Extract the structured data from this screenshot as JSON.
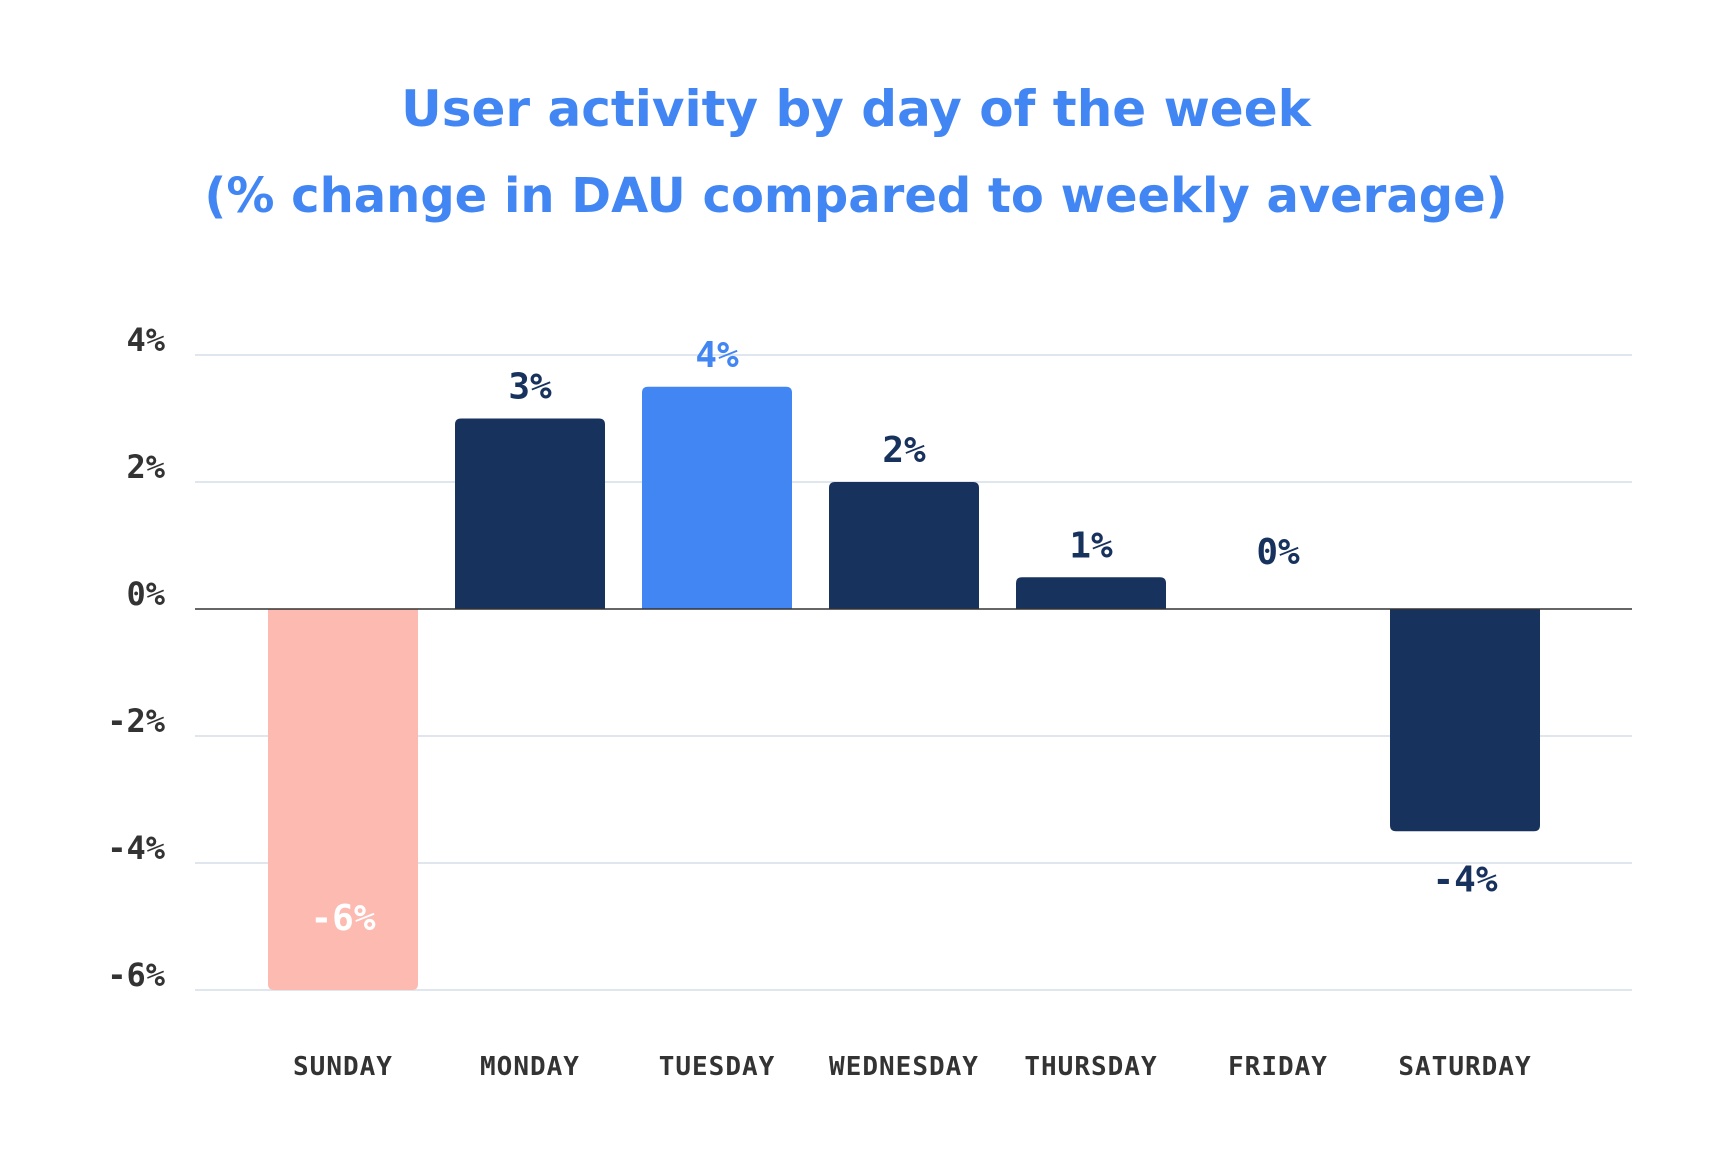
{
  "chart_data": {
    "type": "bar",
    "title": "User activity by day of the week",
    "subtitle": "(% change in DAU compared to weekly average)",
    "categories": [
      "SUNDAY",
      "MONDAY",
      "TUESDAY",
      "WEDNESDAY",
      "THURSDAY",
      "FRIDAY",
      "SATURDAY"
    ],
    "values": [
      -6,
      3,
      3.5,
      2,
      0.5,
      0,
      -3.5
    ],
    "data_labels": [
      "-6%",
      "3%",
      "4%",
      "2%",
      "1%",
      "0%",
      "-4%"
    ],
    "yticks": [
      4,
      2,
      0,
      -2,
      -4,
      -6
    ],
    "ytick_labels": [
      "4%",
      "2%",
      "0%",
      "-2%",
      "-4%",
      "-6%"
    ],
    "ylim": [
      -6,
      4
    ],
    "xlabel": "",
    "ylabel": "",
    "grid": true,
    "legend": "none",
    "colors": {
      "default": "#18325e",
      "highlight_max": "#4286f4",
      "highlight_min": "#fcbab1",
      "gridline": "#dfe6ee",
      "zero_line": "#333333",
      "min_label": "#ffffff"
    }
  }
}
